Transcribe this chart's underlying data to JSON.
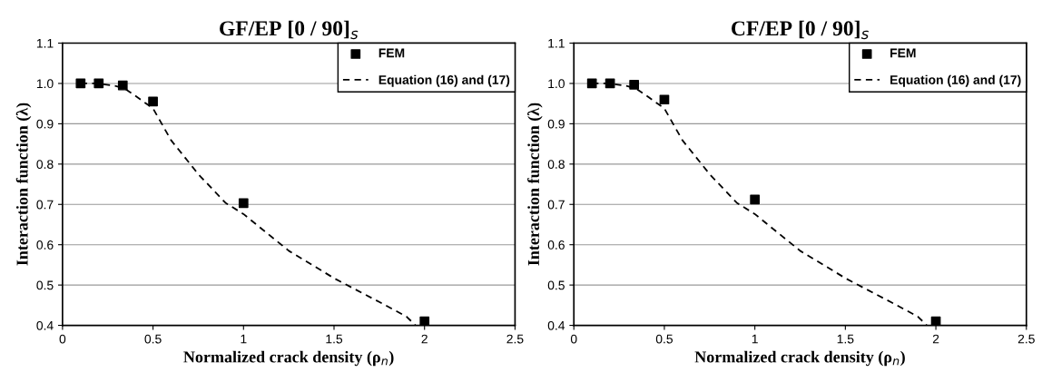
{
  "chart_data": [
    {
      "type": "scatter",
      "title": "GF/EP [0 / 90]$_{s}$",
      "xlabel": "Normalized crack density (ρ$_{n}$)",
      "ylabel": "Interaction function (λ)",
      "xlim": [
        0,
        2.5
      ],
      "xticks": [
        0,
        0.5,
        1,
        1.5,
        2,
        2.5
      ],
      "ylim": [
        0.4,
        1.1
      ],
      "yticks": [
        0.4,
        0.5,
        0.6,
        0.7,
        0.8,
        0.9,
        {
          "value": 1.0,
          "label": "1.0"
        },
        1.1
      ],
      "grid": "y",
      "legend": "top right",
      "series": [
        {
          "name": "FEM",
          "marker": "square",
          "color": "#000000",
          "x": [
            0.1,
            0.2,
            0.333,
            0.5,
            1,
            2
          ],
          "values": [
            1.0,
            1.0,
            0.995,
            0.955,
            0.703,
            0.41
          ]
        },
        {
          "name": "Equation (16) and (17)",
          "type": "line",
          "line_style": "dashed",
          "marker": "none",
          "color": "#000000",
          "x": [
            0.1,
            0.2,
            0.3,
            0.35,
            0.4,
            0.5,
            0.6,
            0.75,
            0.9,
            1.0,
            1.25,
            1.5,
            1.75,
            1.9,
            1.95
          ],
          "values": [
            1.0,
            1.0,
            0.993,
            0.985,
            0.97,
            0.938,
            0.859,
            0.775,
            0.704,
            0.676,
            0.585,
            0.517,
            0.458,
            0.422,
            0.4
          ]
        }
      ]
    },
    {
      "type": "scatter",
      "title": "CF/EP [0 / 90]$_{s}$",
      "xlabel": "Normalized crack density (ρ$_{n}$)",
      "ylabel": "Interaction function (λ)",
      "xlim": [
        0,
        2.5
      ],
      "xticks": [
        0,
        0.5,
        1,
        1.5,
        2,
        2.5
      ],
      "ylim": [
        0.4,
        1.1
      ],
      "yticks": [
        0.4,
        0.5,
        0.6,
        0.7,
        0.8,
        0.9,
        {
          "value": 1.0,
          "label": "1.0"
        },
        1.1
      ],
      "grid": "y",
      "legend": "top right",
      "series": [
        {
          "name": "FEM",
          "marker": "square",
          "color": "#000000",
          "x": [
            0.1,
            0.2,
            0.333,
            0.5,
            1,
            2
          ],
          "values": [
            1.0,
            1.0,
            0.997,
            0.96,
            0.712,
            0.41
          ]
        },
        {
          "name": "Equation (16) and (17)",
          "type": "line",
          "line_style": "dashed",
          "marker": "none",
          "color": "#000000",
          "x": [
            0.1,
            0.2,
            0.3,
            0.35,
            0.4,
            0.5,
            0.6,
            0.75,
            0.9,
            1.0,
            1.25,
            1.5,
            1.75,
            1.9,
            1.95
          ],
          "values": [
            1.0,
            1.0,
            0.993,
            0.985,
            0.97,
            0.938,
            0.859,
            0.775,
            0.704,
            0.676,
            0.585,
            0.517,
            0.458,
            0.422,
            0.4
          ]
        }
      ]
    }
  ]
}
